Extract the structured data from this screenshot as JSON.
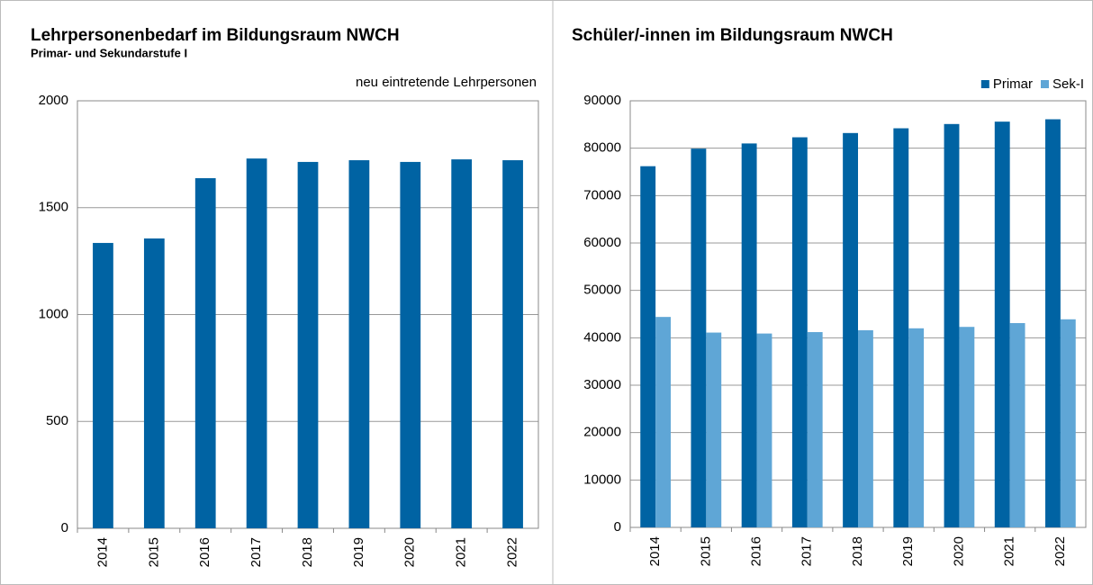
{
  "chart_data": [
    {
      "type": "bar",
      "title": "Lehrpersonenbedarf im Bildungsraum NWCH",
      "subtitle": "Primar- und Sekundarstufe I",
      "annotation": "neu eintretende Lehrpersonen",
      "categories": [
        "2014",
        "2015",
        "2016",
        "2017",
        "2018",
        "2019",
        "2020",
        "2021",
        "2022"
      ],
      "values": [
        1335,
        1356,
        1638,
        1730,
        1714,
        1722,
        1714,
        1726,
        1722
      ],
      "color": "#0063a3",
      "ylim": [
        0,
        2000
      ],
      "yticks": [
        0,
        500,
        1000,
        1500,
        2000
      ],
      "grid": true
    },
    {
      "type": "grouped_bar",
      "title": "Schüler/-innen im Bildungsraum NWCH",
      "categories": [
        "2014",
        "2015",
        "2016",
        "2017",
        "2018",
        "2019",
        "2020",
        "2021",
        "2022"
      ],
      "series": [
        {
          "name": "Primar",
          "color": "#0063a3",
          "values": [
            76200,
            79900,
            81000,
            82300,
            83200,
            84200,
            85100,
            85600,
            86100
          ]
        },
        {
          "name": "Sek-I",
          "color": "#5fa6d6",
          "values": [
            44400,
            41100,
            40900,
            41200,
            41600,
            42000,
            42300,
            43100,
            43900
          ]
        }
      ],
      "ylim": [
        0,
        90000
      ],
      "yticks": [
        0,
        10000,
        20000,
        30000,
        40000,
        50000,
        60000,
        70000,
        80000,
        90000
      ],
      "grid": true,
      "legend": "top-right"
    }
  ]
}
